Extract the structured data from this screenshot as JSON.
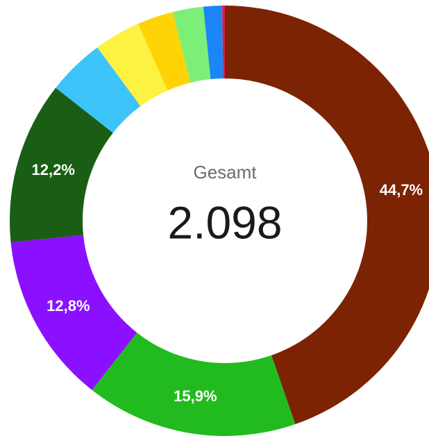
{
  "chart_data": {
    "type": "donut",
    "center_title": "Gesamt",
    "center_text": "2.098",
    "values": [
      44.7,
      15.9,
      12.8,
      12.2,
      4.3,
      3.5,
      2.7,
      2.3,
      1.4,
      0.2
    ],
    "value_labels": [
      "44,7%",
      "15,9%",
      "12,8%",
      "12,2%",
      null,
      null,
      null,
      null,
      null,
      null
    ],
    "colors": [
      "#7b2303",
      "#22bb1f",
      "#8b10ff",
      "#1a5e15",
      "#3cc4fa",
      "#fdf141",
      "#ffd304",
      "#7cef79",
      "#1c86f6",
      "#e3194a"
    ]
  }
}
